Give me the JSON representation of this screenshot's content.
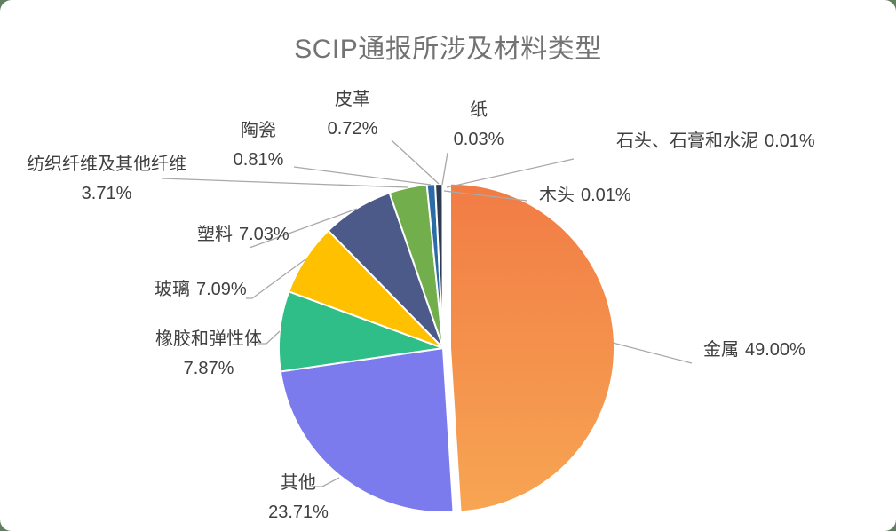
{
  "page": {
    "background_color": "#5F7F60",
    "card_color": "#FFFFFF"
  },
  "chart_data": {
    "type": "pie",
    "title": "SCIP通报所涉及材料类型",
    "unit": "%",
    "start_angle_deg": 0,
    "direction": "clockwise",
    "legend_position": "none",
    "data_labels": "outside-with-leader-lines",
    "title_color": "#737373",
    "label_color": "#404040",
    "leader_line_color": "#A8A8A8",
    "slices": [
      {
        "label": "金属",
        "value": 49.0,
        "pct": "49.00%",
        "color": "#F5854E",
        "color_top": "#F17C45",
        "color_bottom": "#F7A553",
        "exploded": true
      },
      {
        "label": "其他",
        "value": 23.71,
        "pct": "23.71%",
        "color": "#7B7BEE",
        "exploded": false
      },
      {
        "label": "橡胶和弹性体",
        "value": 7.87,
        "pct": "7.87%",
        "color": "#2FBE87",
        "exploded": false
      },
      {
        "label": "玻璃",
        "value": 7.09,
        "pct": "7.09%",
        "color": "#FFC000",
        "exploded": false
      },
      {
        "label": "塑料",
        "value": 7.03,
        "pct": "7.03%",
        "color": "#4B5A89",
        "exploded": false
      },
      {
        "label": "纺织纤维及其他纤维",
        "value": 3.71,
        "pct": "3.71%",
        "color": "#72AE4B",
        "exploded": false
      },
      {
        "label": "陶瓷",
        "value": 0.81,
        "pct": "0.81%",
        "color": "#2C6CA6",
        "exploded": false
      },
      {
        "label": "皮革",
        "value": 0.72,
        "pct": "0.72%",
        "color": "#2E3A52",
        "exploded": false
      },
      {
        "label": "纸",
        "value": 0.03,
        "pct": "0.03%",
        "color": "#24303F",
        "exploded": false
      },
      {
        "label": "石头、石膏和水泥",
        "value": 0.01,
        "pct": "0.01%",
        "color": "#A0A0A0",
        "exploded": false
      },
      {
        "label": "木头",
        "value": 0.01,
        "pct": "0.01%",
        "color": "#8A6B4C",
        "exploded": false
      }
    ]
  }
}
